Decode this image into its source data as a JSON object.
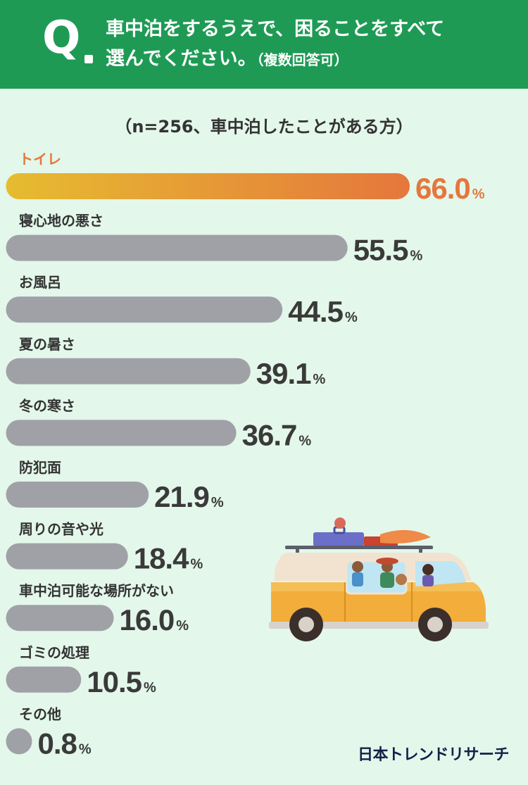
{
  "question": {
    "mark": "Q",
    "line1": "車中泊をするうえで、困ることをすべて",
    "line2": "選んでください。",
    "note": "（複数回答可）"
  },
  "sample_note": "（n=256、車中泊したことがある方）",
  "brand": "日本トレンドリサーチ",
  "colors": {
    "header": "#1f9a55",
    "background": "#e3f7ea",
    "bar_gray": "#a0a1a6",
    "highlight_start": "#e6bc30",
    "highlight_end": "#e5773c",
    "highlight_text": "#e5773c",
    "value_text": "#3a3a3a"
  },
  "chart_data": {
    "type": "bar",
    "orientation": "horizontal",
    "unit": "%",
    "categories": [
      "トイレ",
      "寝心地の悪さ",
      "お風呂",
      "夏の暑さ",
      "冬の寒さ",
      "防犯面",
      "周りの音や光",
      "車中泊可能な場所がない",
      "ゴミの処理",
      "その他"
    ],
    "values": [
      66.0,
      55.5,
      44.5,
      39.1,
      36.7,
      21.9,
      18.4,
      16.0,
      10.5,
      0.8
    ],
    "labels": [
      "66.0",
      "55.5",
      "44.5",
      "39.1",
      "36.7",
      "21.9",
      "18.4",
      "16.0",
      "10.5",
      "0.8"
    ],
    "highlight_index": 0
  }
}
